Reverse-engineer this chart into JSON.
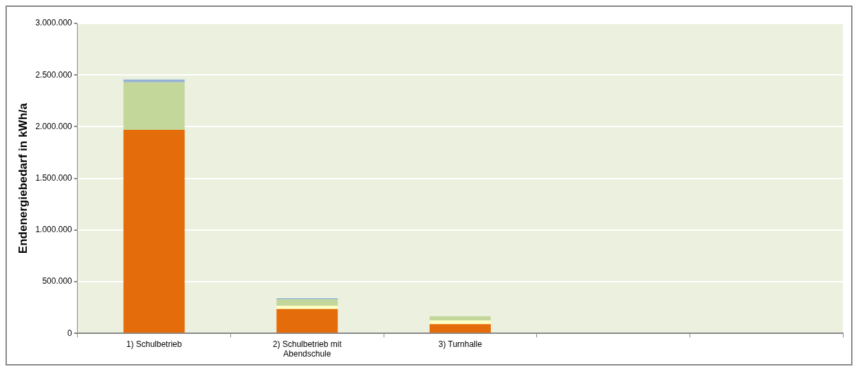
{
  "chart_data": {
    "type": "bar",
    "ylabel": "Endenergiebedarf in kWh/a",
    "categories": [
      "1) Schulbetrieb",
      "2) Schulbetrieb mit Abendschule",
      "3) Turnhalle",
      null,
      null
    ],
    "stacked": true,
    "series": [
      {
        "color": "#e46c0a",
        "values": [
          1970000,
          235000,
          89000,
          null,
          null
        ]
      },
      {
        "color": "#ffffc4",
        "values": [
          0,
          33000,
          35000,
          null,
          null
        ]
      },
      {
        "color": "#c4d79b",
        "values": [
          460000,
          60000,
          42000,
          null,
          null
        ]
      },
      {
        "color": "#95b3d7",
        "values": [
          27000,
          12000,
          0,
          null,
          null
        ]
      }
    ],
    "ylim": [
      0,
      3000000
    ],
    "yticks": [
      {
        "value": 0,
        "label": "0"
      },
      {
        "value": 500000,
        "label": "500.000"
      },
      {
        "value": 1000000,
        "label": "1.000.000"
      },
      {
        "value": 1500000,
        "label": "1.500.000"
      },
      {
        "value": 2000000,
        "label": "2.000.000"
      },
      {
        "value": 2500000,
        "label": "2.500.000"
      },
      {
        "value": 3000000,
        "label": "3.000.000"
      }
    ],
    "grid": "y",
    "legend": false
  }
}
